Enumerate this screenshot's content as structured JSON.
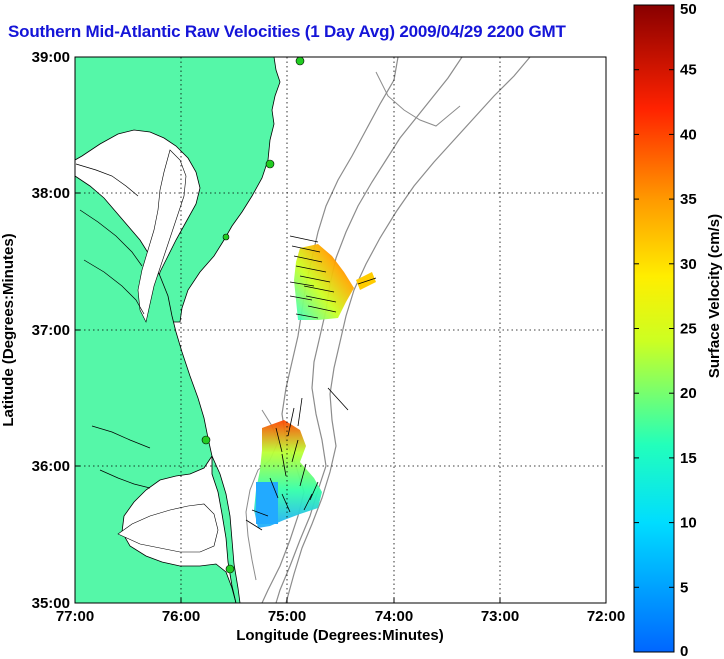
{
  "title": "Southern Mid-Atlantic Raw Velocities (1 Day Avg) 2009/04/29 2200 GMT",
  "x_axis": {
    "label": "Longitude (Degrees:Minutes)",
    "ticks": [
      "77:00",
      "76:00",
      "75:00",
      "74:00",
      "73:00",
      "72:00"
    ]
  },
  "y_axis": {
    "label": "Latitude (Degrees:Minutes)",
    "ticks": [
      "39:00",
      "38:00",
      "37:00",
      "36:00",
      "35:00"
    ]
  },
  "colorbar": {
    "label": "Surface Velocity (cm/s)",
    "ticks": [
      "50",
      "45",
      "40",
      "35",
      "30",
      "25",
      "20",
      "15",
      "10",
      "5",
      "0"
    ],
    "min": 0,
    "max": 50
  },
  "colors": {
    "land": "#55f7a8",
    "coast": "#000000",
    "bathymetry": "#8c8c8c",
    "station": "#22cc22",
    "title": "#1515d8"
  },
  "map": {
    "lon_range": [
      -77,
      -72
    ],
    "lat_range": [
      35,
      39
    ],
    "grid": "dotted"
  }
}
